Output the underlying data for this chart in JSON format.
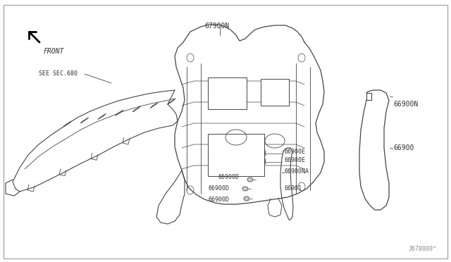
{
  "background_color": "#ffffff",
  "line_color": "#444444",
  "text_color": "#333333",
  "part_number_bottom_right": "J678000^",
  "labels": {
    "front": "FRONT",
    "see_sec": "SEE SEC.680",
    "main_67900N": "67900N",
    "right_66900N": "66900N",
    "right_66900": "66900",
    "bot_66900E_1": "66900E",
    "bot_66900E_2": "66900E",
    "bot_66900NA": "66900NA",
    "bot_66900D_1": "66900D",
    "bot_66900D_2": "66900D",
    "bot_66900D_3": "66900D",
    "bot_66901": "66901"
  },
  "font_size_label": 7.0,
  "font_size_small": 6.0
}
